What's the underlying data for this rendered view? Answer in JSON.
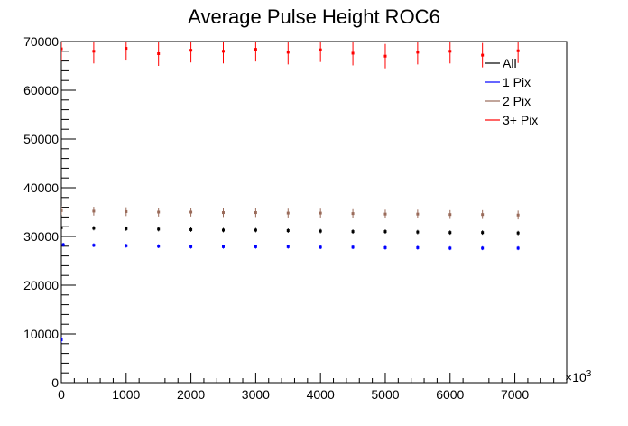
{
  "chart_data": {
    "type": "scatter",
    "title": "Average Pulse Height ROC6",
    "xlabel": "",
    "ylabel": "",
    "x_exponent_label": "×10",
    "x_exponent_power": "3",
    "xlim": [
      0,
      7800
    ],
    "ylim": [
      0,
      70000
    ],
    "x_ticks": [
      0,
      1000,
      2000,
      3000,
      4000,
      5000,
      6000,
      7000
    ],
    "x_tick_labels": [
      "0",
      "1000",
      "2000",
      "3000",
      "4000",
      "5000",
      "6000",
      "7000"
    ],
    "y_ticks": [
      0,
      10000,
      20000,
      30000,
      40000,
      50000,
      60000,
      70000
    ],
    "y_tick_labels": [
      "0",
      "10000",
      "20000",
      "30000",
      "40000",
      "50000",
      "60000",
      "70000"
    ],
    "grid": false,
    "legend_position": "top-right",
    "series": [
      {
        "name": "All",
        "color": "#000000",
        "x": [
          0,
          500,
          1000,
          1500,
          2000,
          2500,
          3000,
          3500,
          4000,
          4500,
          5000,
          5500,
          6000,
          6500,
          7050
        ],
        "y": [
          31800,
          31700,
          31600,
          31500,
          31400,
          31300,
          31300,
          31200,
          31100,
          31000,
          31000,
          30900,
          30800,
          30800,
          30700
        ],
        "err": [
          450,
          450,
          450,
          450,
          450,
          450,
          450,
          450,
          450,
          450,
          450,
          450,
          450,
          450,
          450
        ]
      },
      {
        "name": "1 Pix",
        "color": "#0000ff",
        "x": [
          0,
          30,
          500,
          1000,
          1500,
          2000,
          2500,
          3000,
          3500,
          4000,
          4500,
          5000,
          5500,
          6000,
          6500,
          7050
        ],
        "y": [
          8800,
          28300,
          28200,
          28100,
          28000,
          27900,
          27900,
          27900,
          27900,
          27800,
          27800,
          27700,
          27700,
          27600,
          27600,
          27600
        ],
        "err": [
          600,
          400,
          400,
          400,
          400,
          400,
          400,
          400,
          400,
          400,
          400,
          400,
          400,
          400,
          400,
          400
        ]
      },
      {
        "name": "2 Pix",
        "color": "#9a6b5a",
        "x": [
          0,
          500,
          1000,
          1500,
          2000,
          2500,
          3000,
          3500,
          4000,
          4500,
          5000,
          5500,
          6000,
          6500,
          7050
        ],
        "y": [
          35300,
          35200,
          35100,
          35000,
          35000,
          34900,
          34900,
          34800,
          34800,
          34700,
          34600,
          34600,
          34500,
          34500,
          34400
        ],
        "err": [
          900,
          900,
          900,
          900,
          900,
          900,
          900,
          900,
          900,
          900,
          900,
          900,
          900,
          900,
          900
        ]
      },
      {
        "name": "3+ Pix",
        "color": "#ff0000",
        "x": [
          0,
          500,
          1000,
          1500,
          2000,
          2500,
          3000,
          3500,
          4000,
          4500,
          5000,
          5500,
          6000,
          6500,
          7050
        ],
        "y": [
          68500,
          68000,
          68600,
          67500,
          68200,
          68000,
          68400,
          67800,
          68300,
          67600,
          67000,
          67800,
          68000,
          67200,
          68100
        ],
        "err": [
          2500,
          2500,
          2500,
          2500,
          2500,
          2500,
          2500,
          2500,
          2500,
          2500,
          2500,
          2500,
          2500,
          2500,
          2500
        ]
      }
    ]
  }
}
